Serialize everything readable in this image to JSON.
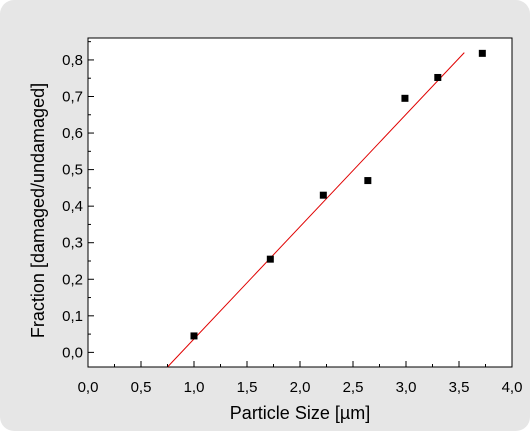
{
  "chart_data": {
    "type": "scatter",
    "xlabel": "Particle Size [µm]",
    "ylabel": "Fraction [damaged/undamaged]",
    "xlim": [
      0.0,
      4.0
    ],
    "ylim": [
      -0.04,
      0.86
    ],
    "x_ticks": [
      0.0,
      0.5,
      1.0,
      1.5,
      2.0,
      2.5,
      3.0,
      3.5,
      4.0
    ],
    "x_tick_labels": [
      "0,0",
      "0,5",
      "1,0",
      "1,5",
      "2,0",
      "2,5",
      "3,0",
      "3,5",
      "4,0"
    ],
    "y_ticks": [
      0.0,
      0.1,
      0.2,
      0.3,
      0.4,
      0.5,
      0.6,
      0.7,
      0.8
    ],
    "y_tick_labels": [
      "0,0",
      "0,1",
      "0,2",
      "0,3",
      "0,4",
      "0,5",
      "0,6",
      "0,7",
      "0,8"
    ],
    "grid": false,
    "series": [
      {
        "type": "scatter",
        "marker": "square",
        "color": "#000000",
        "x": [
          1.0,
          1.72,
          2.22,
          2.64,
          2.99,
          3.3,
          3.72
        ],
        "y": [
          0.045,
          0.255,
          0.43,
          0.47,
          0.695,
          0.752,
          0.818
        ]
      },
      {
        "type": "line",
        "color": "#e00000",
        "x": [
          0.75,
          3.55
        ],
        "y": [
          -0.04,
          0.82
        ]
      }
    ]
  }
}
